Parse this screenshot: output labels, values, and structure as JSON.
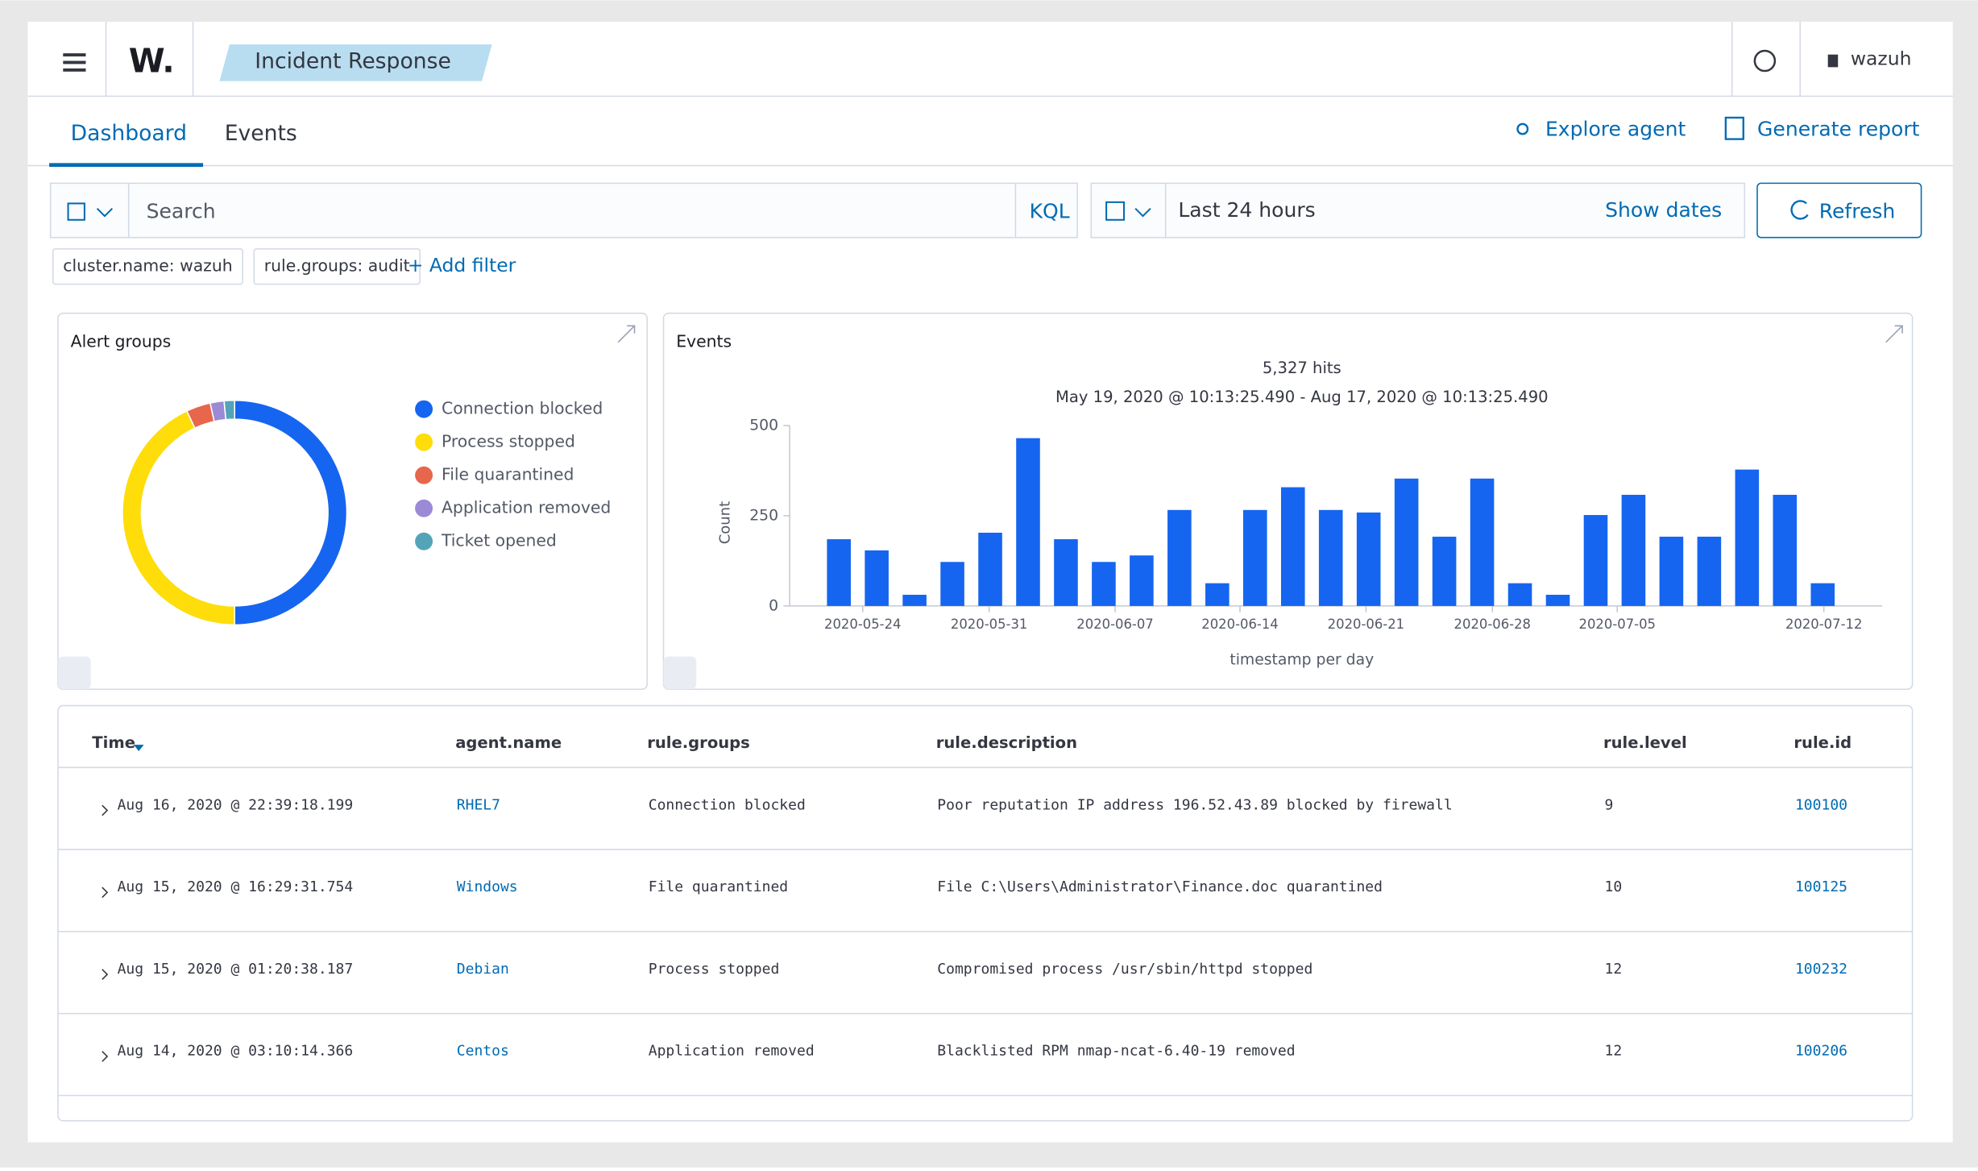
{
  "header": {
    "logo": "W.",
    "breadcrumb": "Incident Response",
    "user": "wazuh"
  },
  "tabs": [
    "Dashboard",
    "Events"
  ],
  "actions": [
    "Explore agent",
    "Generate report"
  ],
  "search": {
    "placeholder": "Search",
    "language": "KQL",
    "time_range": "Last 24 hours",
    "show_dates": "Show dates",
    "refresh": "Refresh"
  },
  "filters": [
    "cluster.name: wazuh",
    "rule.groups: audit"
  ],
  "add_filter": "+ Add filter",
  "alert_groups": {
    "type": "donut",
    "title": "Alert groups",
    "categories": [
      "Connection blocked",
      "Process stopped",
      "File quarantined",
      "Application removed",
      "Ticket opened"
    ],
    "colors": [
      "#1565f0",
      "#fedd0a",
      "#e7664c",
      "#9b8ad6",
      "#54a4b8"
    ],
    "values": [
      50,
      43,
      3.5,
      2,
      1.5
    ]
  },
  "events": {
    "type": "bar",
    "title": "Events",
    "hits": "5,327 hits",
    "range": "May 19, 2020 @ 10:13:25.490 - Aug 17, 2020 @ 10:13:25.490",
    "y_label": "Count",
    "x_label": "timestamp per day",
    "color": "#1565f0",
    "ylim": [
      0,
      500
    ],
    "yticks": [
      0,
      250,
      500
    ],
    "xlim": [
      -1.3,
      27.57
    ],
    "xticks": [
      {
        "value": 0.63,
        "label": "2020-05-24"
      },
      {
        "value": 3.97,
        "label": "2020-05-31"
      },
      {
        "value": 7.3,
        "label": "2020-06-07"
      },
      {
        "value": 10.6,
        "label": "2020-06-14"
      },
      {
        "value": 13.93,
        "label": "2020-06-21"
      },
      {
        "value": 17.27,
        "label": "2020-06-28"
      },
      {
        "value": 20.57,
        "label": "2020-07-05"
      },
      {
        "value": 26.03,
        "label": "2020-07-12"
      }
    ],
    "values": [
      185,
      154,
      31,
      122,
      203,
      465,
      185,
      122,
      140,
      266,
      63,
      266,
      329,
      266,
      259,
      353,
      192,
      353,
      63,
      31,
      252,
      308,
      192,
      192,
      378,
      308,
      63
    ]
  },
  "table": {
    "columns": [
      "Time",
      "agent.name",
      "rule.groups",
      "rule.description",
      "rule.level",
      "rule.id"
    ],
    "rows": [
      [
        "Aug 16, 2020 @ 22:39:18.199",
        "RHEL7",
        "Connection blocked",
        "Poor reputation IP address 196.52.43.89 blocked by firewall",
        "9",
        "100100"
      ],
      [
        "Aug 15, 2020 @ 16:29:31.754",
        "Windows",
        "File quarantined",
        "File C:\\Users\\Administrator\\Finance.doc quarantined",
        "10",
        "100125"
      ],
      [
        "Aug 15, 2020 @ 01:20:38.187",
        "Debian",
        "Process stopped",
        "Compromised process /usr/sbin/httpd stopped",
        "12",
        "100232"
      ],
      [
        "Aug 14, 2020 @ 03:10:14.366",
        "Centos",
        "Application removed",
        "Blacklisted RPM nmap-ncat-6.40-19 removed",
        "12",
        "100206"
      ]
    ]
  }
}
